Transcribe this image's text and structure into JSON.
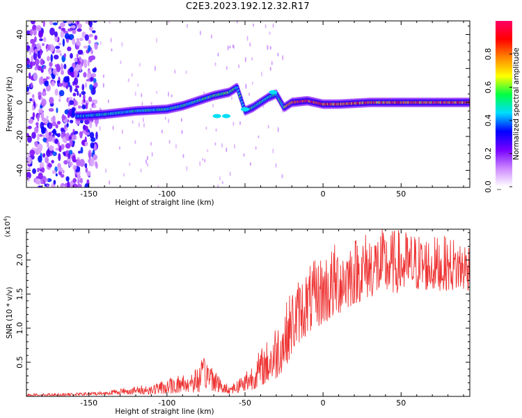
{
  "title": "C2E3.2023.192.12.32.R17",
  "chart_data": [
    {
      "type": "heatmap",
      "xlabel": "Height of straight line (km)",
      "ylabel": "Frequency (Hz)",
      "xlim": [
        -190,
        94
      ],
      "ylim": [
        -50,
        48
      ],
      "x_ticks": [
        -150,
        -100,
        -50,
        0,
        50
      ],
      "x_tick_labels": [
        "-150",
        "-100",
        "",
        "0",
        "50"
      ],
      "y_ticks": [
        -40,
        -20,
        0,
        20,
        40
      ],
      "y_tick_labels": [
        "-40",
        "-20",
        "0",
        "20",
        "40"
      ],
      "colorbar": {
        "label": "Normalized spectral amplitude",
        "range": [
          0,
          1
        ],
        "ticks": [
          0.0,
          0.2,
          0.4,
          0.6,
          0.8
        ],
        "tick_labels": [
          "0.0",
          "0.2",
          "0.4",
          "0.6",
          "0.8"
        ],
        "colors": [
          "#ffffff",
          "#cc88ff",
          "#7700ff",
          "#0000ff",
          "#00ddff",
          "#00ff44",
          "#ffff00",
          "#ff8800",
          "#ff0000",
          "#ff0066"
        ]
      },
      "ridge": {
        "x": [
          -155,
          -140,
          -120,
          -100,
          -90,
          -80,
          -70,
          -60,
          -55,
          -50,
          -45,
          -40,
          -35,
          -30,
          -25,
          -20,
          -10,
          0,
          10,
          30,
          60,
          94
        ],
        "freq_hz": [
          -8,
          -7,
          -5,
          -4,
          -2,
          1,
          4,
          6,
          9,
          -5,
          -3,
          0,
          3,
          5,
          -3,
          0,
          1,
          -1,
          -1,
          0,
          0,
          0
        ],
        "amplitude": [
          0.45,
          0.5,
          0.5,
          0.55,
          0.55,
          0.55,
          0.6,
          0.6,
          0.55,
          0.5,
          0.55,
          0.55,
          0.6,
          0.5,
          0.6,
          0.9,
          0.95,
          0.9,
          0.85,
          0.85,
          0.9,
          0.85
        ]
      },
      "grid": false
    },
    {
      "type": "line",
      "xlabel": "Height of straight line (km)",
      "ylabel": "SNR (10 * v/v)",
      "y_multiplier_label": "(x10",
      "y_multiplier_exp": "4",
      "y_multiplier_close": ")",
      "xlim": [
        -190,
        94
      ],
      "ylim": [
        0,
        2.45
      ],
      "x_ticks": [
        -150,
        -100,
        -50,
        0,
        50
      ],
      "x_tick_labels": [
        "-150",
        "-100",
        "-50",
        "0",
        "50"
      ],
      "y_ticks": [
        0.5,
        1.0,
        1.5,
        2.0
      ],
      "y_tick_labels": [
        "0.5",
        "1.0",
        "1.5",
        "2.0"
      ],
      "color": "#ee3333",
      "envelope": {
        "x": [
          -190,
          -160,
          -140,
          -130,
          -110,
          -100,
          -90,
          -80,
          -75,
          -70,
          -65,
          -60,
          -55,
          -50,
          -45,
          -40,
          -35,
          -30,
          -25,
          -20,
          -15,
          -10,
          -5,
          0,
          5,
          10,
          20,
          30,
          40,
          50,
          60,
          70,
          80,
          94
        ],
        "baseline": [
          0.01,
          0.01,
          0.02,
          0.03,
          0.03,
          0.04,
          0.05,
          0.06,
          0.1,
          0.08,
          0.05,
          0.04,
          0.05,
          0.07,
          0.1,
          0.15,
          0.2,
          0.25,
          0.4,
          0.6,
          0.8,
          0.9,
          1.0,
          1.05,
          1.1,
          1.2,
          1.35,
          1.45,
          1.5,
          1.52,
          1.55,
          1.55,
          1.55,
          1.55
        ],
        "peak": [
          0.04,
          0.05,
          0.08,
          0.12,
          0.18,
          0.25,
          0.35,
          0.45,
          0.62,
          0.5,
          0.22,
          0.18,
          0.25,
          0.4,
          0.5,
          0.7,
          0.85,
          1.1,
          1.3,
          1.6,
          1.75,
          1.9,
          2.0,
          2.1,
          2.2,
          2.3,
          2.35,
          2.45,
          2.45,
          2.45,
          2.4,
          2.35,
          2.35,
          2.3
        ]
      },
      "grid": false
    }
  ]
}
